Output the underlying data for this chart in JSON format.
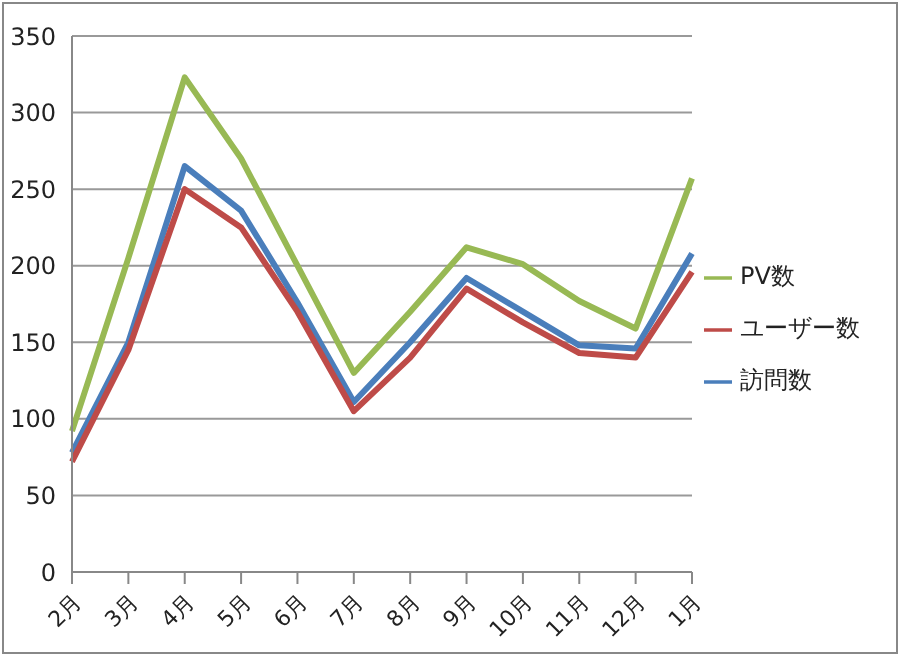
{
  "chart_data": {
    "type": "line",
    "categories": [
      "2月",
      "3月",
      "4月",
      "5月",
      "6月",
      "7月",
      "8月",
      "9月",
      "10月",
      "11月",
      "12月",
      "1月"
    ],
    "series": [
      {
        "name": "訪問数",
        "color": "#4a7ebb",
        "values": [
          78,
          150,
          265,
          236,
          176,
          111,
          150,
          192,
          170,
          148,
          146,
          208
        ]
      },
      {
        "name": "ユーザー数",
        "color": "#be4b48",
        "values": [
          72,
          145,
          250,
          225,
          170,
          105,
          140,
          185,
          163,
          143,
          140,
          196
        ]
      },
      {
        "name": "PV数",
        "color": "#98b954",
        "values": [
          92,
          205,
          323,
          270,
          200,
          130,
          170,
          212,
          201,
          177,
          159,
          257
        ]
      }
    ],
    "ylim": [
      0,
      350
    ],
    "yticks": [
      0,
      50,
      100,
      150,
      200,
      250,
      300,
      350
    ],
    "grid": "y",
    "legend": "right",
    "marker": "none",
    "line_style": "solid"
  }
}
